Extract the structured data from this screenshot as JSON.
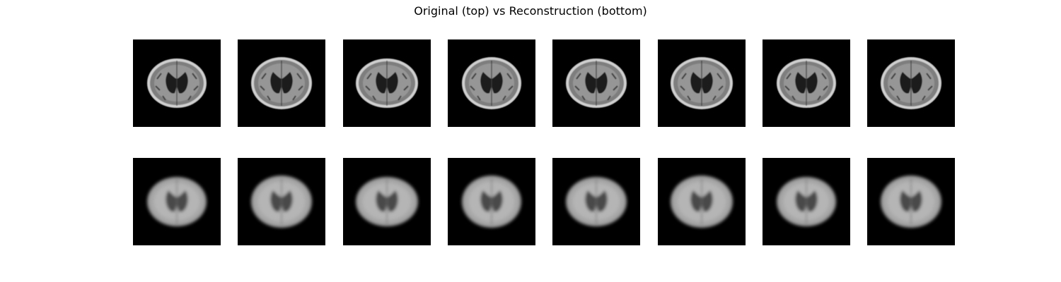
{
  "figure": {
    "title": "Original (top) vs Reconstruction (bottom)",
    "rows": [
      {
        "name": "original",
        "count": 8
      },
      {
        "name": "reconstruction",
        "count": 8
      }
    ],
    "colors": {
      "background": "#ffffff",
      "tile": "#000000",
      "brain_tissue": "#8a8a8a",
      "skull_rim": "#d8d8d8",
      "ventricle": "#1a1a1a"
    }
  }
}
